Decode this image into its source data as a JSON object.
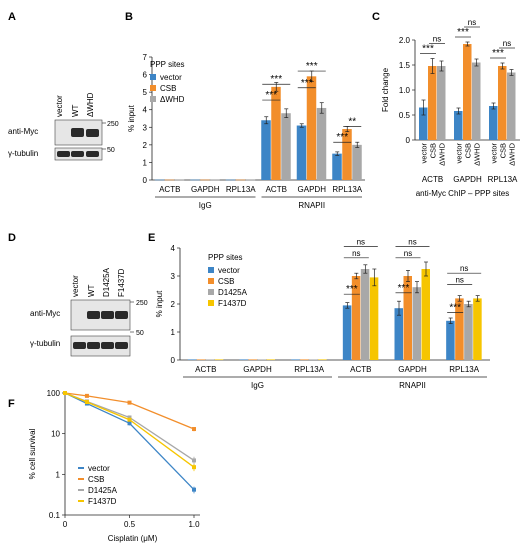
{
  "panel_letters": {
    "A": "A",
    "B": "B",
    "C": "C",
    "D": "D",
    "E": "E",
    "F": "F"
  },
  "colors": {
    "blue": "#3d85c6",
    "orange": "#f28e2b",
    "gray": "#a8a8a8",
    "yellow": "#f6c500",
    "blot_band": "#2a2a2a",
    "blot_bg": "#e6e6e6"
  },
  "blotA": {
    "lanes": [
      "vector",
      "WT",
      "ΔWHD"
    ],
    "rows": [
      "anti-Myc",
      "γ-tubulin"
    ],
    "markers": [
      "250",
      "50"
    ]
  },
  "blotD": {
    "lanes": [
      "vector",
      "WT",
      "D1425A",
      "F1437D"
    ],
    "rows": [
      "anti-Myc",
      "γ-tubulin"
    ],
    "markers": [
      "250",
      "50"
    ]
  },
  "chart_data": [
    {
      "panel": "B",
      "type": "bar",
      "title": "PPP sites",
      "ylabel": "% input",
      "ylim": [
        0,
        7
      ],
      "yticks": [
        "0",
        "1",
        "2",
        "3",
        "4",
        "5",
        "6",
        "7"
      ],
      "groups": [
        "IgG",
        "RNAPII"
      ],
      "categories": [
        "ACTB",
        "GAPDH",
        "RPL13A",
        "ACTB",
        "GAPDH",
        "RPL13A"
      ],
      "series": [
        {
          "name": "vector",
          "values": [
            0.02,
            0.02,
            0.02,
            3.4,
            3.1,
            1.5
          ],
          "err": [
            0.01,
            0.01,
            0.01,
            0.2,
            0.1,
            0.1
          ]
        },
        {
          "name": "CSB",
          "values": [
            0.02,
            0.02,
            0.02,
            5.3,
            5.9,
            2.9
          ],
          "err": [
            0.01,
            0.01,
            0.01,
            0.25,
            0.3,
            0.15
          ]
        },
        {
          "name": "ΔWHD",
          "values": [
            0.02,
            0.02,
            0.02,
            3.8,
            4.1,
            2.0
          ],
          "err": [
            0.01,
            0.01,
            0.01,
            0.25,
            0.3,
            0.15
          ]
        }
      ],
      "significance": [
        "***",
        "***",
        "***",
        "***",
        "***",
        "***",
        "***",
        "**"
      ]
    },
    {
      "panel": "C",
      "type": "bar",
      "ylabel": "Fold change",
      "ylim": [
        0,
        2
      ],
      "yticks": [
        "0",
        "0.5",
        "1.0",
        "1.5",
        "2.0"
      ],
      "categories": [
        "ACTB",
        "GAPDH",
        "RPL13A"
      ],
      "bar_labels": [
        "vector",
        "CSB",
        "ΔWHD"
      ],
      "xlabel": "anti-Myc ChIP – PPP sites",
      "series": [
        {
          "name": "vector",
          "values": [
            0.65,
            0.58,
            0.68
          ],
          "err": [
            0.15,
            0.06,
            0.06
          ]
        },
        {
          "name": "CSB",
          "values": [
            1.48,
            1.92,
            1.48
          ],
          "err": [
            0.15,
            0.04,
            0.06
          ]
        },
        {
          "name": "ΔWHD",
          "values": [
            1.48,
            1.55,
            1.35
          ],
          "err": [
            0.1,
            0.07,
            0.06
          ]
        }
      ],
      "significance": [
        "***",
        "ns",
        "***",
        "ns",
        "***",
        "ns"
      ]
    },
    {
      "panel": "E",
      "type": "bar",
      "title": "PPP sites",
      "ylabel": "% input",
      "ylim": [
        0,
        4
      ],
      "yticks": [
        "0",
        "1",
        "2",
        "3",
        "4"
      ],
      "groups": [
        "IgG",
        "RNAPII"
      ],
      "categories": [
        "ACTB",
        "GAPDH",
        "RPL13A",
        "ACTB",
        "GAPDH",
        "RPL13A"
      ],
      "series": [
        {
          "name": "vector",
          "values": [
            0.02,
            0.02,
            0.02,
            1.95,
            1.85,
            1.4
          ],
          "err": [
            0.01,
            0.01,
            0.01,
            0.1,
            0.25,
            0.1
          ]
        },
        {
          "name": "CSB",
          "values": [
            0.02,
            0.02,
            0.02,
            3.0,
            3.0,
            2.2
          ],
          "err": [
            0.01,
            0.01,
            0.01,
            0.1,
            0.2,
            0.1
          ]
        },
        {
          "name": "D1425A",
          "values": [
            0.02,
            0.02,
            0.02,
            3.25,
            2.6,
            2.0
          ],
          "err": [
            0.01,
            0.01,
            0.01,
            0.15,
            0.2,
            0.1
          ]
        },
        {
          "name": "F1437D",
          "values": [
            0.02,
            0.02,
            0.02,
            2.95,
            3.25,
            2.2
          ],
          "err": [
            0.01,
            0.01,
            0.01,
            0.3,
            0.25,
            0.1
          ]
        }
      ],
      "significance": [
        "***",
        "ns",
        "ns",
        "***",
        "ns",
        "ns",
        "***",
        "ns",
        "ns"
      ]
    },
    {
      "panel": "F",
      "type": "line",
      "ylabel": "% cell survival",
      "xlabel": "Cisplatin (μM)",
      "yscale": "log",
      "ylim": [
        0.1,
        100
      ],
      "yticks": [
        "0.1",
        "1",
        "10",
        "100"
      ],
      "xlim": [
        0,
        1.0
      ],
      "xticks": [
        "0",
        "0.5",
        "1.0"
      ],
      "x": [
        0,
        0.17,
        0.5,
        1.0
      ],
      "series": [
        {
          "name": "vector",
          "values": [
            100,
            55,
            18,
            0.42
          ],
          "err": [
            0,
            3,
            2,
            0.08
          ]
        },
        {
          "name": "CSB",
          "values": [
            100,
            85,
            58,
            13
          ],
          "err": [
            0,
            3,
            3,
            1.5
          ]
        },
        {
          "name": "D1425A",
          "values": [
            100,
            62,
            25,
            2.2
          ],
          "err": [
            0,
            3,
            2,
            0.5
          ]
        },
        {
          "name": "F1437D",
          "values": [
            100,
            60,
            22,
            1.5
          ],
          "err": [
            0,
            3,
            2,
            0.3
          ]
        }
      ]
    }
  ]
}
